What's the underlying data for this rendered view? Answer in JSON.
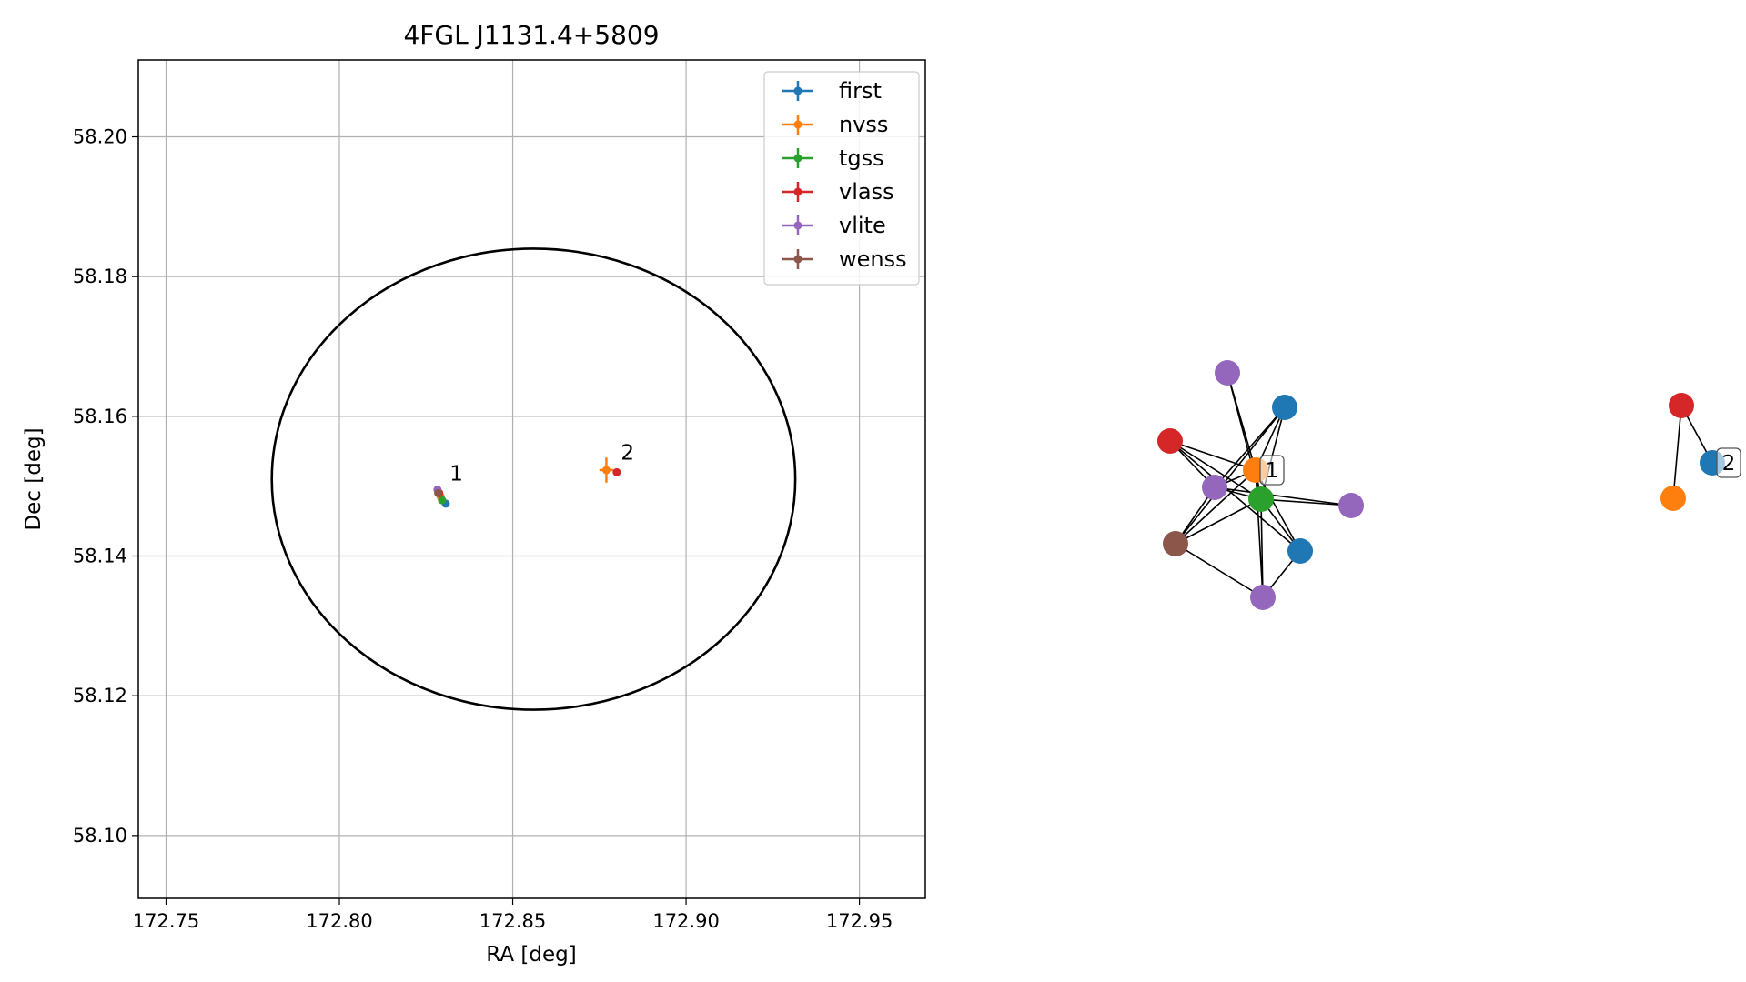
{
  "chart_data": [
    {
      "type": "scatter",
      "title": "4FGL J1131.4+5809",
      "xlabel": "RA [deg]",
      "ylabel": "Dec [deg]",
      "xlim": [
        172.742,
        172.969
      ],
      "ylim": [
        58.091,
        58.211
      ],
      "xticks": [
        172.75,
        172.8,
        172.85,
        172.9,
        172.95
      ],
      "xtick_labels": [
        "172.75",
        "172.80",
        "172.85",
        "172.90",
        "172.95"
      ],
      "yticks": [
        58.1,
        58.12,
        58.14,
        58.16,
        58.18,
        58.2
      ],
      "ytick_labels": [
        "58.10",
        "58.12",
        "58.14",
        "58.16",
        "58.18",
        "58.20"
      ],
      "grid": true,
      "legend": "top-right",
      "ellipse": {
        "center": [
          172.856,
          58.151
        ],
        "semi_ra": 0.0755,
        "semi_dec": 0.033,
        "color": "#000000"
      },
      "series": [
        {
          "name": "first",
          "color": "#1f77b4",
          "points": [
            {
              "x": 172.8307,
              "y": 58.1475,
              "xerr": 0,
              "yerr": 0
            }
          ]
        },
        {
          "name": "nvss",
          "color": "#ff7f0e",
          "points": [
            {
              "x": 172.8292,
              "y": 58.1485,
              "xerr": 0,
              "yerr": 0
            },
            {
              "x": 172.877,
              "y": 58.1523,
              "xerr": 0.002,
              "yerr": 0.0018
            }
          ]
        },
        {
          "name": "tgss",
          "color": "#2ca02c",
          "points": [
            {
              "x": 172.8296,
              "y": 58.148,
              "xerr": 0,
              "yerr": 0
            }
          ]
        },
        {
          "name": "vlass",
          "color": "#d62728",
          "points": [
            {
              "x": 172.8288,
              "y": 58.149,
              "xerr": 0,
              "yerr": 0
            },
            {
              "x": 172.88,
              "y": 58.152,
              "xerr": 0,
              "yerr": 0
            }
          ]
        },
        {
          "name": "vlite",
          "color": "#9467bd",
          "points": [
            {
              "x": 172.8283,
              "y": 58.1495,
              "xerr": 0,
              "yerr": 0
            }
          ]
        },
        {
          "name": "wenss",
          "color": "#8c564b",
          "points": [
            {
              "x": 172.8285,
              "y": 58.149,
              "xerr": 0,
              "yerr": 0
            }
          ]
        }
      ],
      "annotations": [
        {
          "text": "1",
          "x": 172.8318,
          "y": 58.1508
        },
        {
          "text": "2",
          "x": 172.8812,
          "y": 58.1538
        }
      ]
    },
    {
      "type": "network",
      "nodes": [
        {
          "id": "n1",
          "color": "#9467bd"
        },
        {
          "id": "n2",
          "color": "#1f77b4"
        },
        {
          "id": "n3",
          "color": "#d62728"
        },
        {
          "id": "n4",
          "color": "#ff7f0e",
          "label": "1"
        },
        {
          "id": "n5",
          "color": "#9467bd"
        },
        {
          "id": "n6",
          "color": "#2ca02c"
        },
        {
          "id": "n7",
          "color": "#9467bd"
        },
        {
          "id": "n8",
          "color": "#8c564b"
        },
        {
          "id": "n9",
          "color": "#1f77b4"
        },
        {
          "id": "n10",
          "color": "#9467bd"
        },
        {
          "id": "m1",
          "color": "#d62728"
        },
        {
          "id": "m2",
          "color": "#1f77b4",
          "label": "2"
        },
        {
          "id": "m3",
          "color": "#ff7f0e"
        }
      ],
      "edges": [
        [
          "n1",
          "n4"
        ],
        [
          "n1",
          "n6"
        ],
        [
          "n2",
          "n4"
        ],
        [
          "n2",
          "n5"
        ],
        [
          "n2",
          "n6"
        ],
        [
          "n2",
          "n8"
        ],
        [
          "n3",
          "n4"
        ],
        [
          "n3",
          "n5"
        ],
        [
          "n3",
          "n6"
        ],
        [
          "n3",
          "n9"
        ],
        [
          "n4",
          "n5"
        ],
        [
          "n4",
          "n6"
        ],
        [
          "n4",
          "n8"
        ],
        [
          "n4",
          "n9"
        ],
        [
          "n4",
          "n10"
        ],
        [
          "n5",
          "n6"
        ],
        [
          "n5",
          "n7"
        ],
        [
          "n5",
          "n8"
        ],
        [
          "n6",
          "n7"
        ],
        [
          "n6",
          "n8"
        ],
        [
          "n6",
          "n9"
        ],
        [
          "n6",
          "n10"
        ],
        [
          "n8",
          "n10"
        ],
        [
          "n9",
          "n10"
        ],
        [
          "m1",
          "m2"
        ],
        [
          "m1",
          "m3"
        ]
      ]
    }
  ]
}
